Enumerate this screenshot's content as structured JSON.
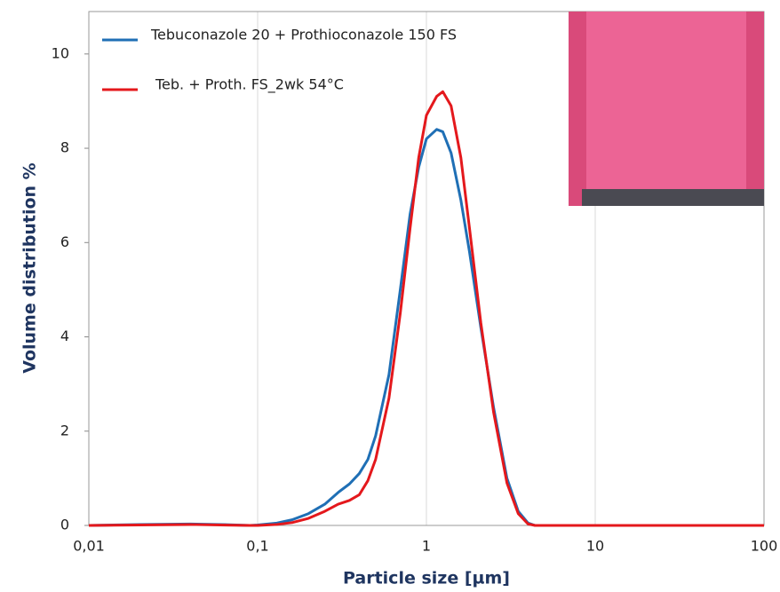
{
  "chart_data": {
    "type": "line",
    "xlabel": "Particle size [µm]",
    "ylabel": "Volume distribution %",
    "xscale": "log",
    "grid": "x",
    "legend": "upper left",
    "x": [
      0.01,
      0.02,
      0.04,
      0.06,
      0.09,
      0.1,
      0.13,
      0.16,
      0.2,
      0.25,
      0.3,
      0.35,
      0.4,
      0.45,
      0.5,
      0.6,
      0.7,
      0.8,
      0.9,
      1.0,
      1.15,
      1.25,
      1.4,
      1.6,
      1.8,
      2.1,
      2.5,
      3.0,
      3.5,
      4.0,
      4.4,
      10,
      100
    ],
    "series": [
      {
        "name": "Tebuconazole 20 + Prothioconazole 150 FS",
        "color": "#1f6fb5",
        "values": [
          0,
          0.02,
          0.03,
          0.02,
          0,
          0.01,
          0.05,
          0.12,
          0.25,
          0.45,
          0.7,
          0.88,
          1.1,
          1.4,
          1.9,
          3.2,
          5.0,
          6.6,
          7.6,
          8.2,
          8.4,
          8.35,
          7.9,
          6.9,
          5.8,
          4.2,
          2.5,
          1.0,
          0.3,
          0.05,
          0,
          0,
          0
        ]
      },
      {
        "name": "Teb. + Proth. FS_2wk 54°C",
        "color": "#e4181c",
        "values": [
          0,
          0.01,
          0.02,
          0.01,
          0,
          0,
          0.02,
          0.06,
          0.15,
          0.3,
          0.45,
          0.53,
          0.65,
          0.95,
          1.4,
          2.7,
          4.5,
          6.3,
          7.8,
          8.7,
          9.1,
          9.2,
          8.9,
          7.8,
          6.3,
          4.3,
          2.4,
          0.9,
          0.25,
          0.03,
          0,
          0,
          0
        ]
      }
    ],
    "xlim": [
      0.01,
      100
    ],
    "xticks": [
      {
        "value": 0.01,
        "label": "0,01"
      },
      {
        "value": 0.1,
        "label": "0,1"
      },
      1,
      10,
      100
    ],
    "ylim": [
      0,
      10.9
    ],
    "yticks": [
      0,
      2,
      4,
      6,
      8,
      10
    ]
  }
}
